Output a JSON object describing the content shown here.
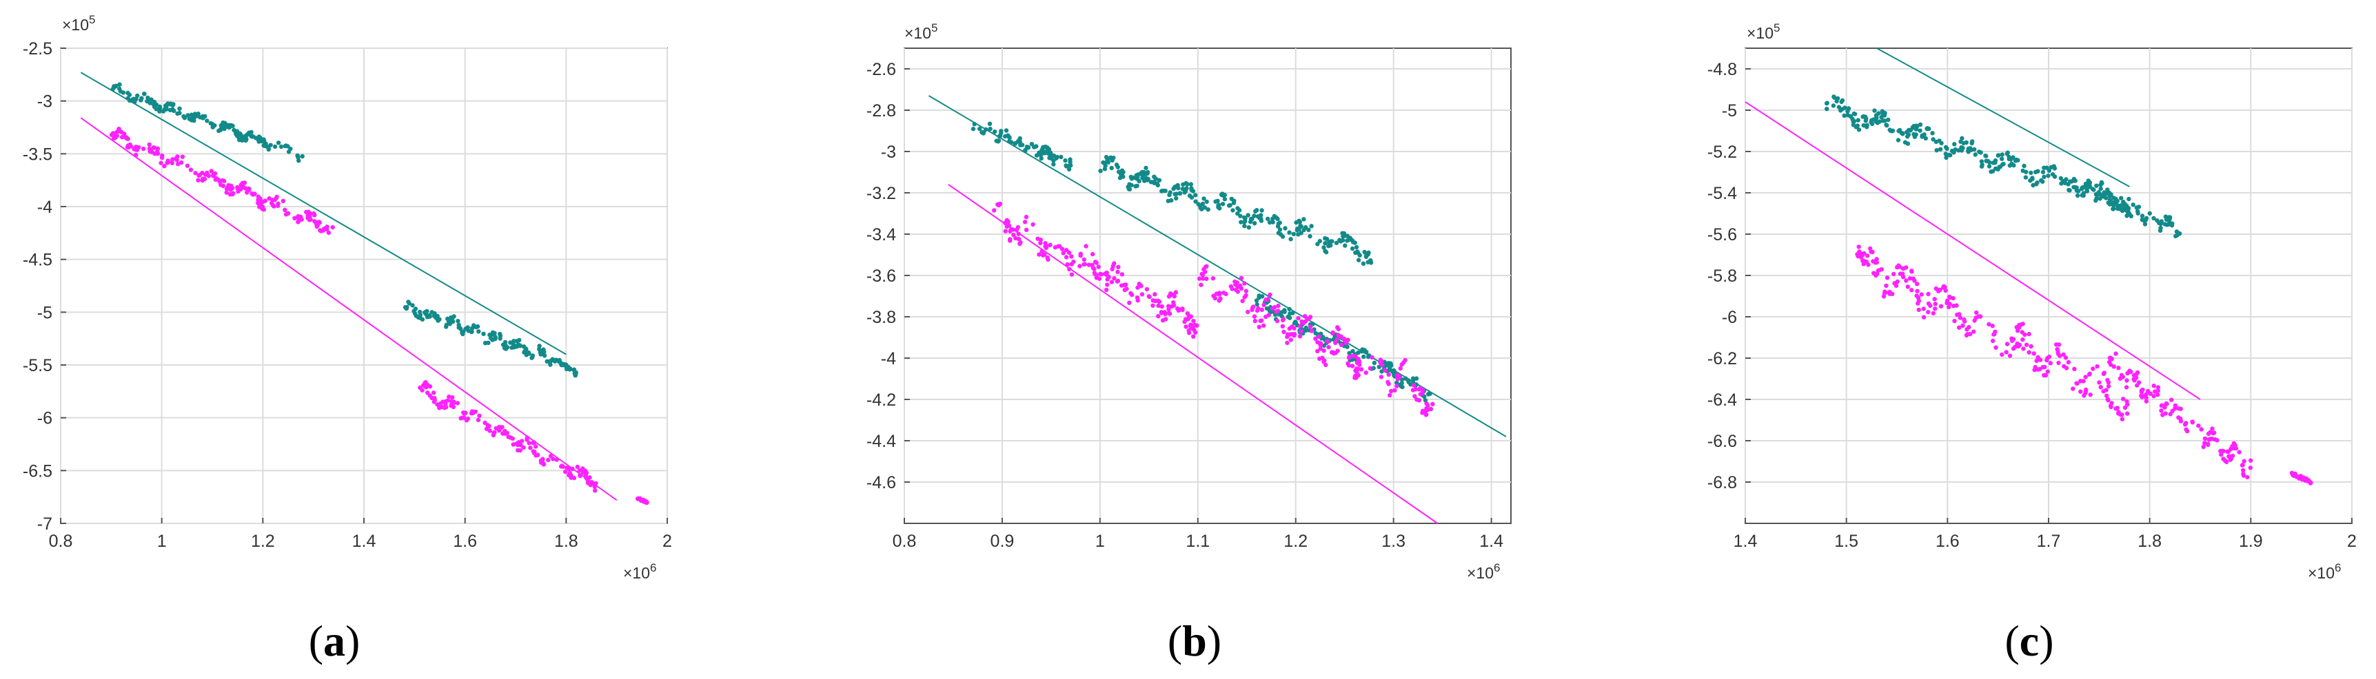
{
  "colors": {
    "teal": "#138a8a",
    "magenta": "#ff22ff",
    "frame": "#555555",
    "grid": "#dcdcdc",
    "tick_text": "#333333"
  },
  "chart_data": [
    {
      "type": "scatter",
      "caption_letter": "a",
      "xlim": [
        0.8,
        2.0
      ],
      "ylim": [
        -7.0,
        -2.5
      ],
      "xticks": [
        "0.8",
        "1",
        "1.2",
        "1.4",
        "1.6",
        "1.8",
        "2"
      ],
      "yticks": [
        "-2.5",
        "-3",
        "-3.5",
        "-4",
        "-4.5",
        "-5",
        "-5.5",
        "-6",
        "-6.5",
        "-7"
      ],
      "x_exponent": "×10^6",
      "y_exponent": "×10^5",
      "grid": true,
      "series": [
        {
          "color": "teal",
          "kind": "points",
          "clusters": [
            {
              "x_start": 0.9,
              "x_end": 1.28,
              "y_start": -2.88,
              "y_end": -3.52,
              "spread": 0.07
            },
            {
              "x_start": 1.48,
              "x_end": 1.78,
              "y_start": -4.95,
              "y_end": -5.45,
              "spread": 0.08
            },
            {
              "x_start": 1.78,
              "x_end": 1.82,
              "y_start": -5.45,
              "y_end": -5.58,
              "spread": 0.03
            }
          ]
        },
        {
          "color": "magenta",
          "kind": "points",
          "clusters": [
            {
              "x_start": 0.9,
              "x_end": 1.34,
              "y_start": -3.32,
              "y_end": -4.22,
              "spread": 0.1
            },
            {
              "x_start": 1.51,
              "x_end": 1.87,
              "y_start": -5.72,
              "y_end": -6.65,
              "spread": 0.1
            },
            {
              "x_start": 1.94,
              "x_end": 1.96,
              "y_start": -6.76,
              "y_end": -6.8,
              "spread": 0.01
            }
          ]
        },
        {
          "color": "teal",
          "kind": "line",
          "x": [
            0.84,
            1.8
          ],
          "y": [
            -2.73,
            -5.4
          ]
        },
        {
          "color": "magenta",
          "kind": "line",
          "x": [
            0.84,
            1.9
          ],
          "y": [
            -3.16,
            -6.78
          ]
        }
      ]
    },
    {
      "type": "scatter",
      "caption_letter": "b",
      "xlim": [
        0.8,
        1.42
      ],
      "ylim": [
        -4.8,
        -2.5
      ],
      "xticks": [
        "0.8",
        "0.9",
        "1",
        "1.1",
        "1.2",
        "1.3",
        "1.4"
      ],
      "yticks": [
        "-2.6",
        "-2.8",
        "-3",
        "-3.2",
        "-3.4",
        "-3.6",
        "-3.8",
        "-4",
        "-4.2",
        "-4.4",
        "-4.6"
      ],
      "x_exponent": "×10^6",
      "y_exponent": "×10^5",
      "grid": true,
      "series": [
        {
          "color": "teal",
          "kind": "points",
          "clusters": [
            {
              "x_start": 0.87,
              "x_end": 0.97,
              "y_start": -2.87,
              "y_end": -3.05,
              "spread": 0.05
            },
            {
              "x_start": 1.0,
              "x_end": 1.28,
              "y_start": -3.07,
              "y_end": -3.5,
              "spread": 0.07
            },
            {
              "x_start": 1.16,
              "x_end": 1.34,
              "y_start": -3.72,
              "y_end": -4.18,
              "spread": 0.05
            }
          ]
        },
        {
          "color": "magenta",
          "kind": "points",
          "clusters": [
            {
              "x_start": 0.89,
              "x_end": 1.1,
              "y_start": -3.32,
              "y_end": -3.82,
              "spread": 0.1
            },
            {
              "x_start": 1.1,
              "x_end": 1.34,
              "y_start": -3.62,
              "y_end": -4.18,
              "spread": 0.12
            }
          ]
        },
        {
          "color": "teal",
          "kind": "line",
          "x": [
            0.825,
            1.415
          ],
          "y": [
            -2.73,
            -4.38
          ]
        },
        {
          "color": "magenta",
          "kind": "line",
          "x": [
            0.845,
            1.345
          ],
          "y": [
            -3.16,
            -4.8
          ]
        }
      ]
    },
    {
      "type": "scatter",
      "caption_letter": "c",
      "xlim": [
        1.4,
        2.0
      ],
      "ylim": [
        -7.0,
        -4.7
      ],
      "xticks": [
        "1.4",
        "1.5",
        "1.6",
        "1.7",
        "1.8",
        "1.9",
        "2"
      ],
      "yticks": [
        "-4.8",
        "-5",
        "-5.2",
        "-5.4",
        "-5.6",
        "-5.8",
        "-6",
        "-6.2",
        "-6.4",
        "-6.6",
        "-6.8"
      ],
      "x_exponent": "×10^6",
      "y_exponent": "×10^5",
      "grid": true,
      "series": [
        {
          "color": "teal",
          "kind": "points",
          "clusters": [
            {
              "x_start": 1.48,
              "x_end": 1.78,
              "y_start": -4.98,
              "y_end": -5.45,
              "spread": 0.07
            },
            {
              "x_start": 1.72,
              "x_end": 1.83,
              "y_start": -5.35,
              "y_end": -5.58,
              "spread": 0.05
            }
          ]
        },
        {
          "color": "magenta",
          "kind": "points",
          "clusters": [
            {
              "x_start": 1.51,
              "x_end": 1.78,
              "y_start": -5.72,
              "y_end": -6.42,
              "spread": 0.12
            },
            {
              "x_start": 1.76,
              "x_end": 1.9,
              "y_start": -6.22,
              "y_end": -6.73,
              "spread": 0.08
            },
            {
              "x_start": 1.94,
              "x_end": 1.96,
              "y_start": -6.76,
              "y_end": -6.8,
              "spread": 0.01
            }
          ]
        },
        {
          "color": "teal",
          "kind": "line",
          "x": [
            1.53,
            1.78
          ],
          "y": [
            -4.7,
            -5.37
          ]
        },
        {
          "color": "magenta",
          "kind": "line",
          "x": [
            1.4,
            1.85
          ],
          "y": [
            -4.96,
            -6.4
          ]
        }
      ]
    }
  ]
}
